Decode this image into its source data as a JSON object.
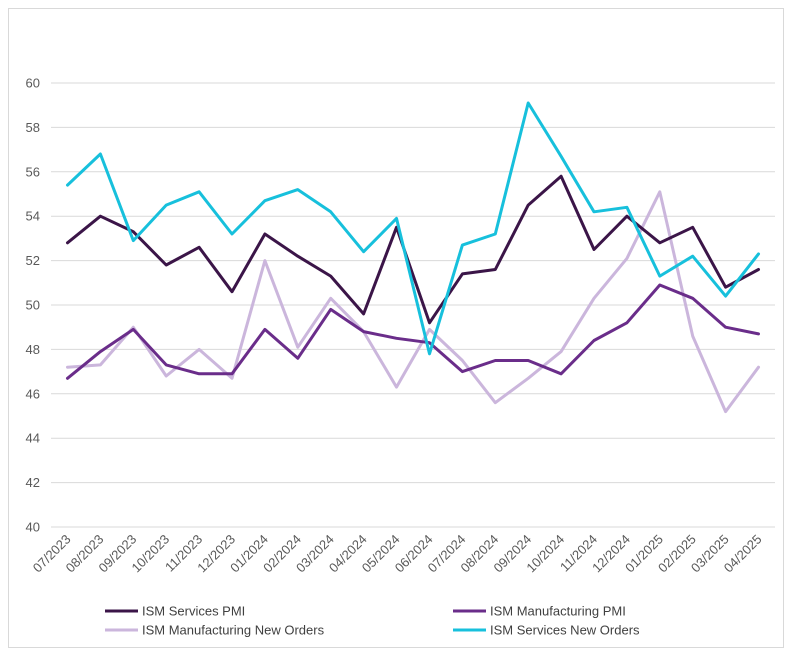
{
  "chart_data": {
    "type": "line",
    "title": "",
    "xlabel": "",
    "ylabel": "",
    "ylim": [
      40,
      60
    ],
    "yticks": [
      40,
      42,
      44,
      46,
      48,
      50,
      52,
      54,
      56,
      58,
      60
    ],
    "grid": true,
    "legend_position": "bottom",
    "categories": [
      "07/2023",
      "08/2023",
      "09/2023",
      "10/2023",
      "11/2023",
      "12/2023",
      "01/2024",
      "02/2024",
      "03/2024",
      "04/2024",
      "05/2024",
      "06/2024",
      "07/2024",
      "08/2024",
      "09/2024",
      "10/2024",
      "11/2024",
      "12/2024",
      "01/2025",
      "02/2025",
      "03/2025",
      "04/2025"
    ],
    "series": [
      {
        "name": "ISM Services PMI",
        "color": "#3b1548",
        "values": [
          52.8,
          54.0,
          53.3,
          51.8,
          52.6,
          50.6,
          53.2,
          52.2,
          51.3,
          49.6,
          53.5,
          49.2,
          51.4,
          51.6,
          54.5,
          55.8,
          52.5,
          54.0,
          52.8,
          53.5,
          50.8,
          51.6
        ]
      },
      {
        "name": "ISM Manufacturing PMI",
        "color": "#6a2d8a",
        "values": [
          46.7,
          47.9,
          48.9,
          47.3,
          46.9,
          46.9,
          48.9,
          47.6,
          49.8,
          48.8,
          48.5,
          48.3,
          47.0,
          47.5,
          47.5,
          46.9,
          48.4,
          49.2,
          50.9,
          50.3,
          49.0,
          48.7
        ]
      },
      {
        "name": "ISM Manufacturing New Orders",
        "color": "#cbb6dc",
        "values": [
          47.2,
          47.3,
          49.0,
          46.8,
          48.0,
          46.7,
          52.0,
          48.1,
          50.3,
          48.8,
          46.3,
          48.9,
          47.5,
          45.6,
          46.7,
          47.9,
          50.3,
          52.1,
          55.1,
          48.6,
          45.2,
          47.2
        ]
      },
      {
        "name": "ISM Services New Orders",
        "color": "#17c0dc",
        "values": [
          55.4,
          56.8,
          52.9,
          54.5,
          55.1,
          53.2,
          54.7,
          55.2,
          54.2,
          52.4,
          53.9,
          47.8,
          52.7,
          53.2,
          59.1,
          56.7,
          54.2,
          54.4,
          51.3,
          52.2,
          50.4,
          52.3
        ]
      }
    ]
  }
}
